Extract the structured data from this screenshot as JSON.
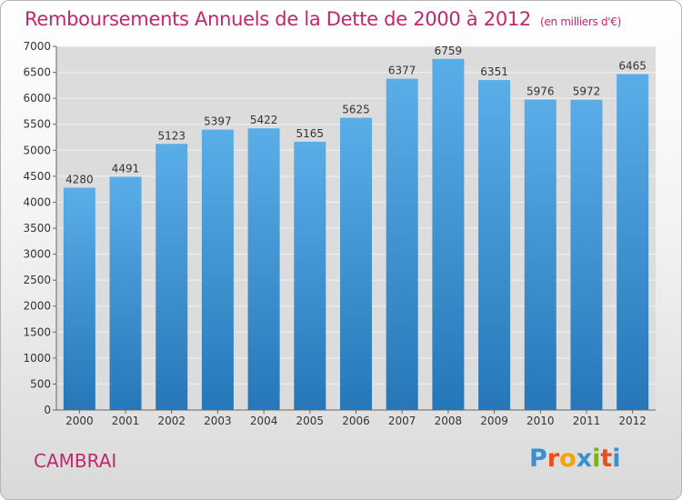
{
  "header": {
    "title": "Remboursements Annuels de la Dette de 2000 à 2012",
    "unit": "(en milliers d'€)"
  },
  "footer": {
    "city": "CAMBRAI",
    "logo_text": "Proxiti",
    "logo_colors": [
      "#3a8fd0",
      "#e94e1b",
      "#f4a300",
      "#3a8fd0",
      "#7ab800",
      "#e94e1b",
      "#3a8fd0"
    ]
  },
  "chart_data": {
    "type": "bar",
    "categories": [
      "2000",
      "2001",
      "2002",
      "2003",
      "2004",
      "2005",
      "2006",
      "2007",
      "2008",
      "2009",
      "2010",
      "2011",
      "2012"
    ],
    "values": [
      4280,
      4491,
      5123,
      5397,
      5422,
      5165,
      5625,
      6377,
      6759,
      6351,
      5976,
      5972,
      6465
    ],
    "ylim": [
      0,
      7000
    ],
    "yticks": [
      0,
      500,
      1000,
      1500,
      2000,
      2500,
      3000,
      3500,
      4000,
      4500,
      5000,
      5500,
      6000,
      6500,
      7000
    ],
    "grid": true,
    "bar_color_top": "#5aaee8",
    "bar_color_bottom": "#2677b8"
  }
}
